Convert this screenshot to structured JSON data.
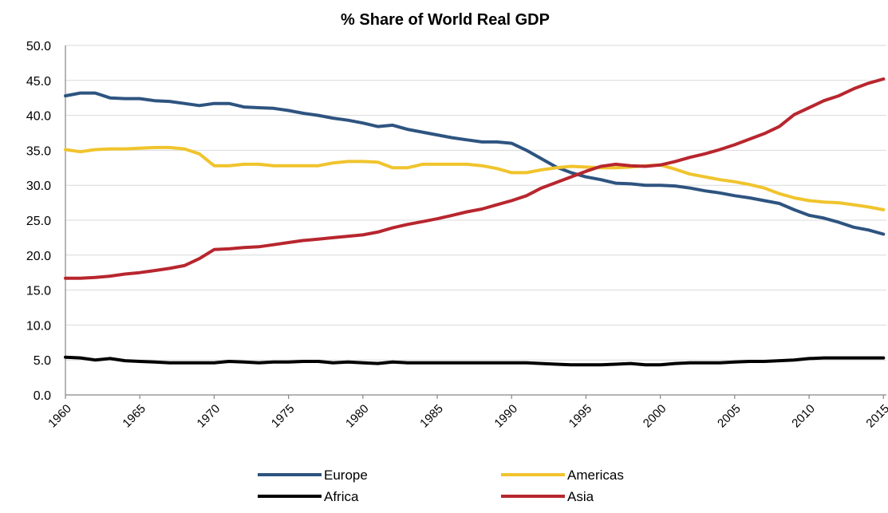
{
  "chart_data": {
    "type": "line",
    "title": "% Share of World  Real GDP",
    "xlabel": "",
    "ylabel": "",
    "ylim": [
      0,
      50
    ],
    "yticks": [
      "0.0",
      "5.0",
      "10.0",
      "15.0",
      "20.0",
      "25.0",
      "30.0",
      "35.0",
      "40.0",
      "45.0",
      "50.0"
    ],
    "xticks": [
      "1960",
      "1965",
      "1970",
      "1975",
      "1980",
      "1985",
      "1990",
      "1995",
      "2000",
      "2005",
      "2010",
      "2015"
    ],
    "x": [
      1960,
      1961,
      1962,
      1963,
      1964,
      1965,
      1966,
      1967,
      1968,
      1969,
      1970,
      1971,
      1972,
      1973,
      1974,
      1975,
      1976,
      1977,
      1978,
      1979,
      1980,
      1981,
      1982,
      1983,
      1984,
      1985,
      1986,
      1987,
      1988,
      1989,
      1990,
      1991,
      1992,
      1993,
      1994,
      1995,
      1996,
      1997,
      1998,
      1999,
      2000,
      2001,
      2002,
      2003,
      2004,
      2005,
      2006,
      2007,
      2008,
      2009,
      2010,
      2011,
      2012,
      2013,
      2014,
      2015
    ],
    "grid": true,
    "legend_position": "bottom",
    "series": [
      {
        "name": "Europe",
        "color": "#2e5480",
        "values": [
          42.8,
          43.2,
          43.2,
          42.5,
          42.4,
          42.4,
          42.1,
          42.0,
          41.7,
          41.4,
          41.7,
          41.7,
          41.2,
          41.1,
          41.0,
          40.7,
          40.3,
          40.0,
          39.6,
          39.3,
          38.9,
          38.4,
          38.6,
          38.0,
          37.6,
          37.2,
          36.8,
          36.5,
          36.2,
          36.2,
          36.0,
          35.0,
          33.8,
          32.6,
          31.8,
          31.2,
          30.8,
          30.3,
          30.2,
          30.0,
          30.0,
          29.9,
          29.6,
          29.2,
          28.9,
          28.5,
          28.2,
          27.8,
          27.4,
          26.5,
          25.7,
          25.3,
          24.7,
          24.0,
          23.6,
          23.0
        ]
      },
      {
        "name": "Americas",
        "color": "#f0c42d",
        "values": [
          35.1,
          34.8,
          35.1,
          35.2,
          35.2,
          35.3,
          35.4,
          35.4,
          35.2,
          34.5,
          32.8,
          32.8,
          33.0,
          33.0,
          32.8,
          32.8,
          32.8,
          32.8,
          33.2,
          33.4,
          33.4,
          33.3,
          32.5,
          32.5,
          33.0,
          33.0,
          33.0,
          33.0,
          32.8,
          32.4,
          31.8,
          31.8,
          32.2,
          32.5,
          32.7,
          32.6,
          32.5,
          32.5,
          32.6,
          32.8,
          32.9,
          32.3,
          31.6,
          31.2,
          30.8,
          30.5,
          30.1,
          29.6,
          28.8,
          28.2,
          27.8,
          27.6,
          27.5,
          27.2,
          26.9,
          26.5
        ]
      },
      {
        "name": "Africa",
        "color": "#000000",
        "values": [
          5.4,
          5.3,
          5.0,
          5.2,
          4.9,
          4.8,
          4.7,
          4.6,
          4.6,
          4.6,
          4.6,
          4.8,
          4.7,
          4.6,
          4.7,
          4.7,
          4.8,
          4.8,
          4.6,
          4.7,
          4.6,
          4.5,
          4.7,
          4.6,
          4.6,
          4.6,
          4.6,
          4.6,
          4.6,
          4.6,
          4.6,
          4.6,
          4.5,
          4.4,
          4.3,
          4.3,
          4.3,
          4.4,
          4.5,
          4.3,
          4.3,
          4.5,
          4.6,
          4.6,
          4.6,
          4.7,
          4.8,
          4.8,
          4.9,
          5.0,
          5.2,
          5.3,
          5.3,
          5.3,
          5.3,
          5.3
        ]
      },
      {
        "name": "Asia",
        "color": "#b8262e",
        "values": [
          16.7,
          16.7,
          16.8,
          17.0,
          17.3,
          17.5,
          17.8,
          18.1,
          18.5,
          19.5,
          20.8,
          20.9,
          21.1,
          21.2,
          21.5,
          21.8,
          22.1,
          22.3,
          22.5,
          22.7,
          22.9,
          23.3,
          23.9,
          24.4,
          24.8,
          25.2,
          25.7,
          26.2,
          26.6,
          27.2,
          27.8,
          28.5,
          29.6,
          30.4,
          31.2,
          32.0,
          32.7,
          33.0,
          32.8,
          32.7,
          32.9,
          33.4,
          34.0,
          34.5,
          35.1,
          35.8,
          36.6,
          37.4,
          38.4,
          40.1,
          41.1,
          42.1,
          42.8,
          43.8,
          44.6,
          45.2
        ]
      }
    ]
  }
}
